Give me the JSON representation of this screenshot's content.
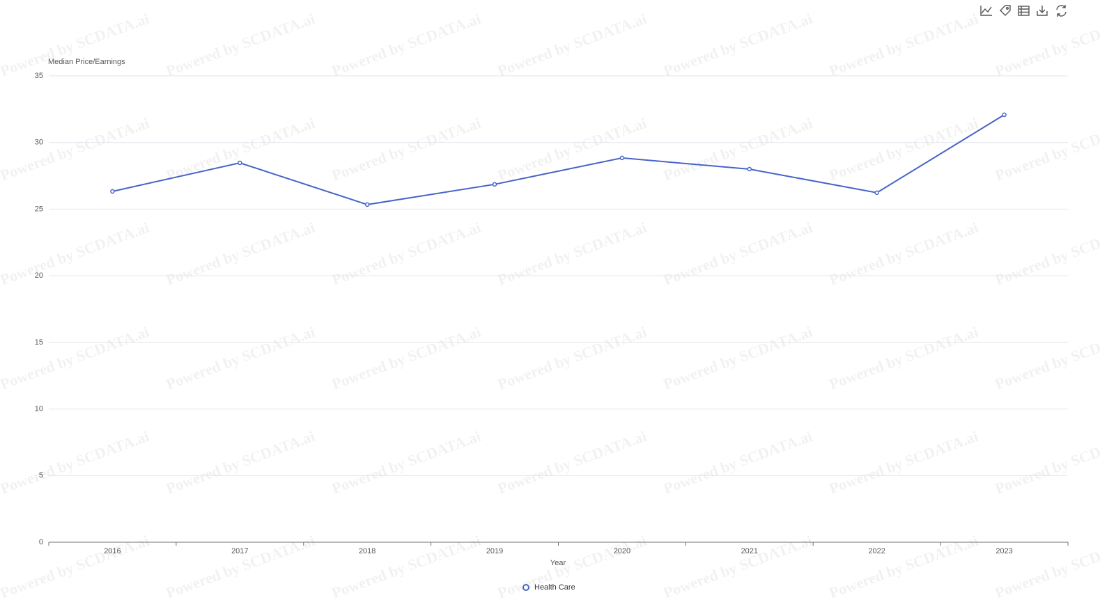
{
  "chart_data": {
    "type": "line",
    "y_axis_label": "Median Price/Earnings",
    "x_axis_label": "Year",
    "categories": [
      "2016",
      "2017",
      "2018",
      "2019",
      "2020",
      "2021",
      "2022",
      "2023"
    ],
    "series": [
      {
        "name": "Health Care",
        "color": "#4664c8",
        "values": [
          26.33,
          28.47,
          25.34,
          26.86,
          28.84,
          28.0,
          26.23,
          32.08
        ]
      }
    ],
    "ylim": [
      0,
      35
    ],
    "yticks": [
      0,
      5,
      10,
      15,
      20,
      25,
      30,
      35
    ],
    "grid": true,
    "legend": "bottom",
    "watermark": "Powered by SCDATA.ai"
  }
}
